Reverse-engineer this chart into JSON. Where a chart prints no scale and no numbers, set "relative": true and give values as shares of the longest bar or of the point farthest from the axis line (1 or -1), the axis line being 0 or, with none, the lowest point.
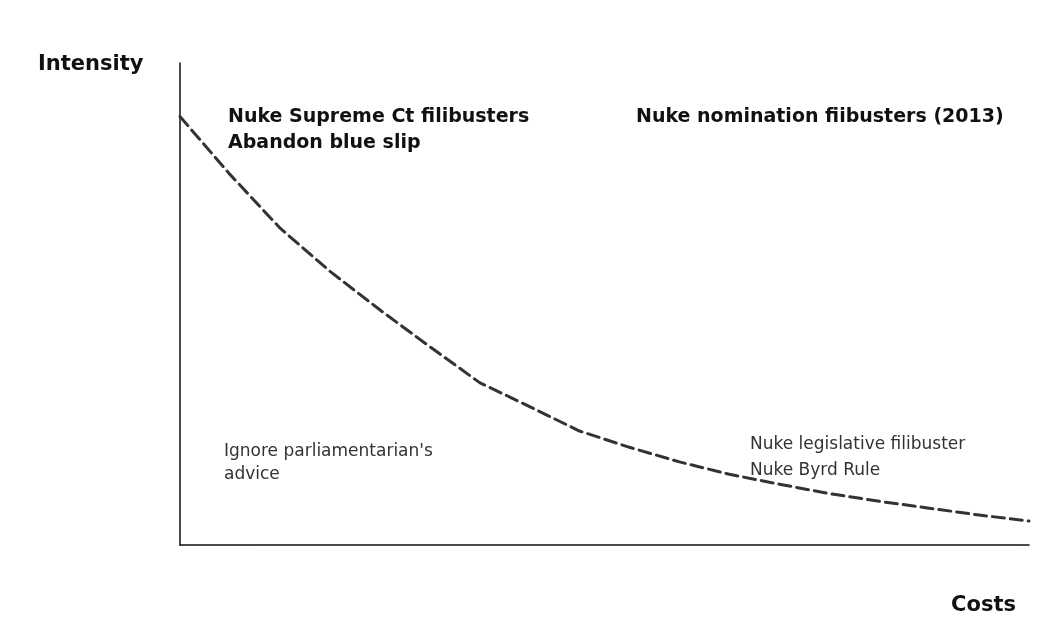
{
  "chart_data": {
    "type": "line",
    "relative": true,
    "xlabel": "Costs",
    "ylabel": "Intensity",
    "line_style": "dashed",
    "marker": "none",
    "color": "#333333",
    "categories": [
      null,
      null,
      null,
      null,
      null,
      null,
      null,
      null,
      null,
      null,
      null,
      null,
      null,
      null,
      null,
      null,
      null,
      null
    ],
    "values": [
      1,
      0.865,
      0.74,
      0.639,
      0.549,
      0.463,
      0.379,
      0.323,
      0.266,
      0.228,
      0.194,
      0.165,
      0.142,
      0.12,
      0.102,
      0.086,
      0.07,
      0.056
    ],
    "annotations": [
      "Nuke Supreme Ct filibusters",
      "Abandon blue slip",
      "Nuke nomination fiibusters (2013)",
      "Ignore parliamentarian's",
      "advice",
      "Nuke legislative filibuster",
      "Nuke Byrd Rule"
    ]
  }
}
